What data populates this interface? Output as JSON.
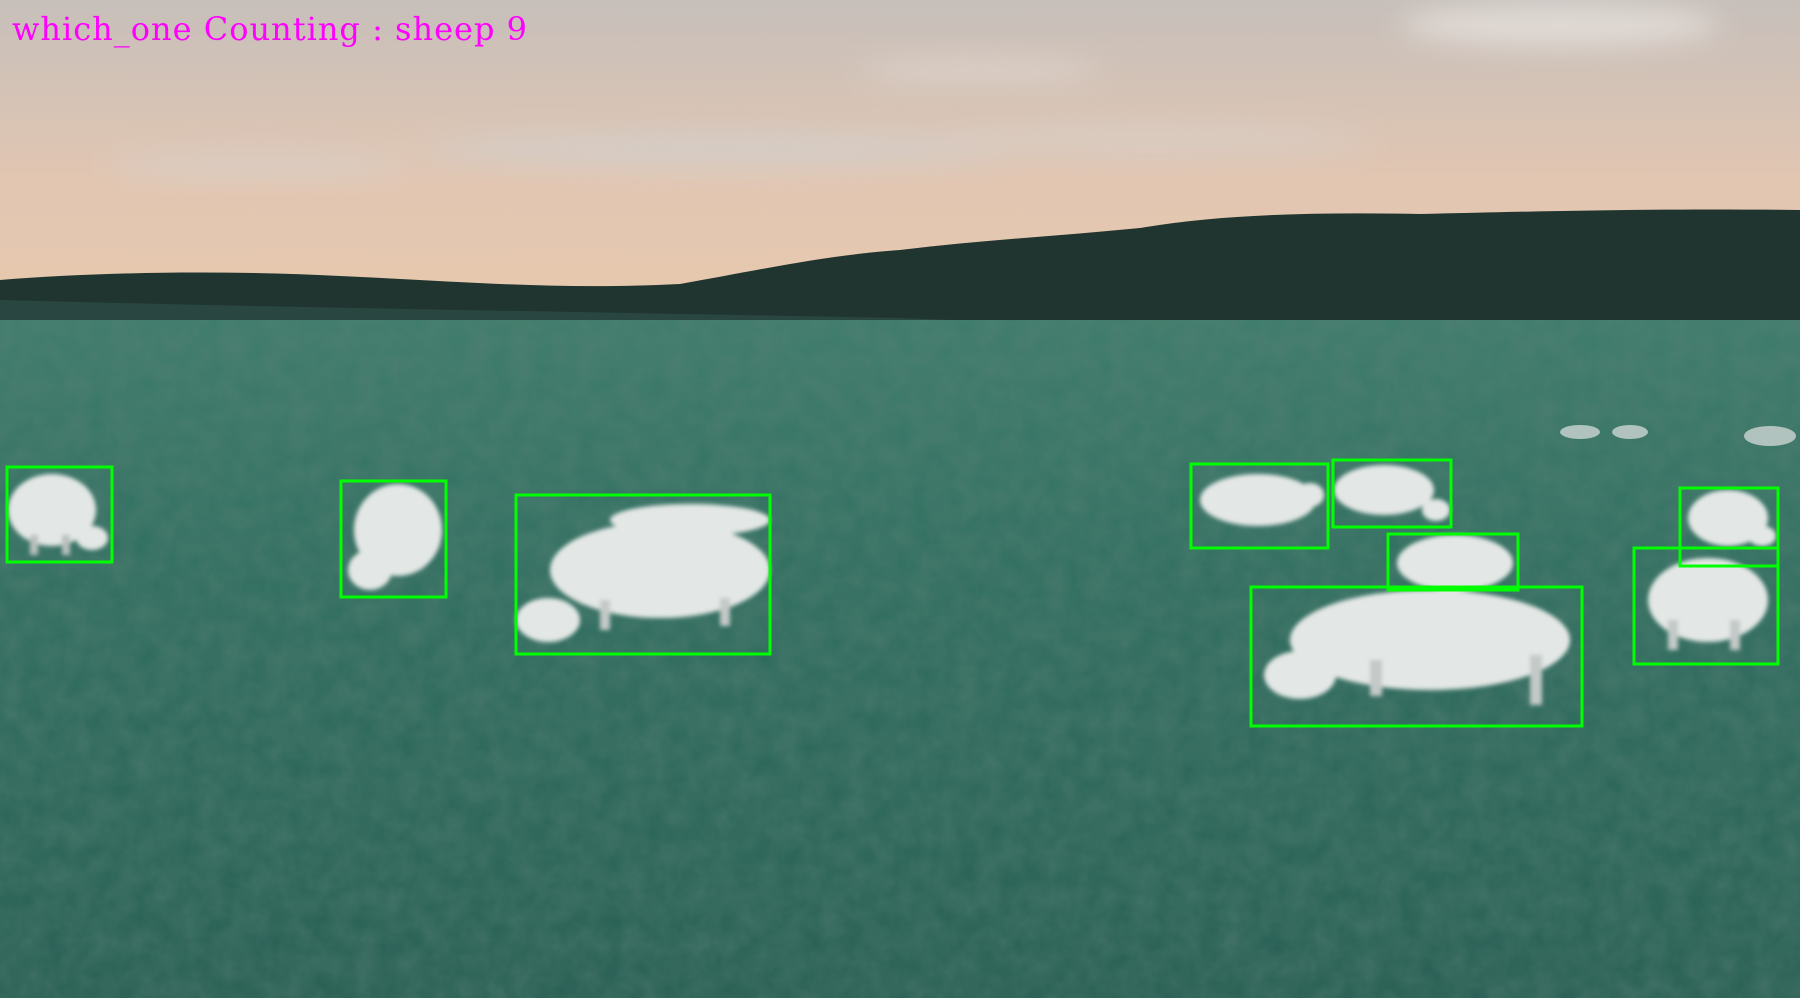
{
  "caption": {
    "label": "which_one Counting : sheep 9",
    "color": "#ff00ff"
  },
  "detections": {
    "class_name": "sheep",
    "count": 9,
    "box_color": "#00ff00"
  },
  "palette": {
    "sky_top": "#c9c1bb",
    "sky_warm": "#e6c7b0",
    "treeline": "#1f3430",
    "grass_far": "#3f7f6e",
    "grass_near": "#2a6658",
    "sheep_wool": "#e4e8e6"
  }
}
